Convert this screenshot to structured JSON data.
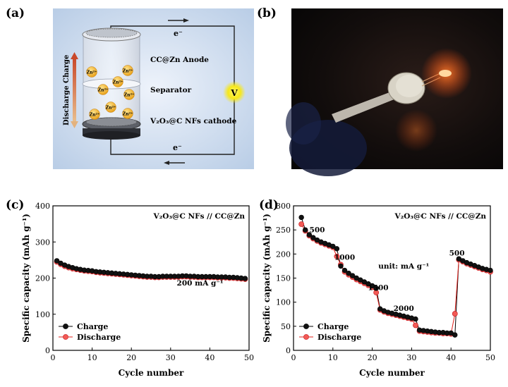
{
  "panels": {
    "a": {
      "label": "(a)",
      "electron_top": "e⁻",
      "electron_bottom": "e⁻",
      "anode": "CC@Zn Anode",
      "separator": "Separator",
      "cathode": "V₂O₃@C NFs cathode",
      "charge": "Charge",
      "discharge": "Discharge",
      "voltmeter": "V",
      "ion": "Zn²⁺"
    },
    "b": {
      "label": "(b)"
    },
    "c": {
      "label": "(c)"
    },
    "d": {
      "label": "(d)"
    }
  },
  "chart_data": [
    {
      "id": "c",
      "type": "scatter",
      "title": "V₂O₃@C NFs // CC@Zn",
      "annotation": "200 mA g⁻¹",
      "xlabel": "Cycle number",
      "ylabel": "Specific capacity (mAh g⁻¹)",
      "xlim": [
        0,
        50
      ],
      "ylim": [
        0,
        400
      ],
      "xticks": [
        0,
        10,
        20,
        30,
        40,
        50
      ],
      "yticks": [
        0,
        100,
        200,
        300,
        400
      ],
      "legend": "bottom-left",
      "x": [
        1,
        2,
        3,
        4,
        5,
        6,
        7,
        8,
        9,
        10,
        11,
        12,
        13,
        14,
        15,
        16,
        17,
        18,
        19,
        20,
        21,
        22,
        23,
        24,
        25,
        26,
        27,
        28,
        29,
        30,
        31,
        32,
        33,
        34,
        35,
        36,
        37,
        38,
        39,
        40,
        41,
        42,
        43,
        44,
        45,
        46,
        47,
        48,
        49
      ],
      "series": [
        {
          "name": "Charge",
          "color": "#000000",
          "values": [
            248,
            241,
            236,
            232,
            229,
            226,
            224,
            222,
            221,
            220,
            218,
            217,
            216,
            215,
            214,
            213,
            212,
            211,
            210,
            209,
            208,
            207,
            206,
            205,
            205,
            204,
            204,
            205,
            205,
            205,
            205,
            205,
            206,
            206,
            205,
            205,
            204,
            204,
            204,
            204,
            204,
            203,
            203,
            203,
            202,
            202,
            201,
            200,
            199
          ]
        },
        {
          "name": "Discharge",
          "color": "#e0201b",
          "values": [
            245,
            238,
            233,
            229,
            226,
            224,
            222,
            220,
            219,
            218,
            216,
            215,
            214,
            213,
            212,
            211,
            210,
            209,
            208,
            207,
            206,
            205,
            204,
            203,
            203,
            202,
            202,
            203,
            203,
            203,
            203,
            203,
            204,
            204,
            203,
            203,
            202,
            202,
            202,
            202,
            202,
            201,
            201,
            201,
            200,
            200,
            199,
            198,
            197
          ]
        }
      ]
    },
    {
      "id": "d",
      "type": "scatter",
      "title": "V₂O₃@C NFs // CC@Zn",
      "annotations": [
        "500",
        "1000",
        "1500",
        "2000",
        "500",
        "unit: mA g⁻¹"
      ],
      "xlabel": "Cycle number",
      "ylabel": "Specific capacity (mAh g⁻¹)",
      "xlim": [
        0,
        50
      ],
      "ylim": [
        0,
        300
      ],
      "xticks": [
        0,
        10,
        20,
        30,
        40,
        50
      ],
      "yticks": [
        0,
        50,
        100,
        150,
        200,
        250,
        300
      ],
      "legend": "bottom-left",
      "x": [
        2,
        3,
        4,
        5,
        6,
        7,
        8,
        9,
        10,
        11,
        12,
        13,
        14,
        15,
        16,
        17,
        18,
        19,
        20,
        21,
        22,
        23,
        24,
        25,
        26,
        27,
        28,
        29,
        30,
        31,
        32,
        33,
        34,
        35,
        36,
        37,
        38,
        39,
        40,
        41,
        42,
        43,
        44,
        45,
        46,
        47,
        48,
        49,
        50
      ],
      "series": [
        {
          "name": "Charge",
          "color": "#000000",
          "values": [
            276,
            250,
            240,
            234,
            229,
            225,
            222,
            219,
            216,
            211,
            175,
            166,
            160,
            155,
            150,
            146,
            142,
            138,
            134,
            129,
            86,
            82,
            79,
            77,
            75,
            73,
            71,
            69,
            67,
            65,
            42,
            41,
            40,
            39,
            38,
            37,
            37,
            36,
            36,
            32,
            190,
            186,
            182,
            179,
            176,
            173,
            170,
            168,
            166
          ]
        },
        {
          "name": "Discharge",
          "color": "#e0201b",
          "values": [
            262,
            248,
            238,
            232,
            227,
            223,
            220,
            217,
            214,
            195,
            178,
            163,
            157,
            152,
            147,
            143,
            139,
            135,
            131,
            120,
            84,
            80,
            77,
            75,
            73,
            71,
            69,
            67,
            65,
            52,
            40,
            39,
            38,
            37,
            36,
            36,
            35,
            35,
            34,
            76,
            188,
            184,
            180,
            177,
            174,
            171,
            168,
            166,
            163
          ]
        }
      ]
    }
  ]
}
